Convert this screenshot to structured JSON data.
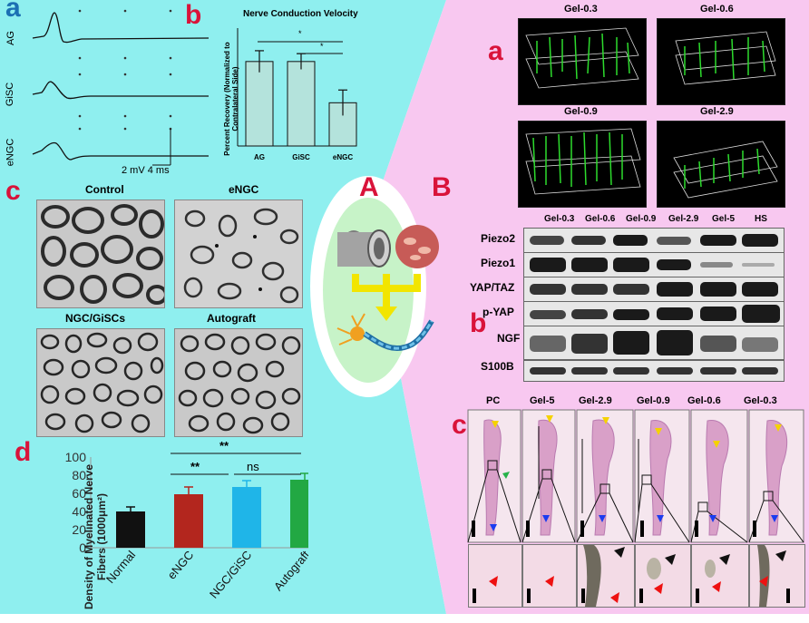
{
  "panel_left": {
    "letter_a": "a",
    "letter_b": "b",
    "letter_c": "c",
    "letter_d": "d",
    "traces": {
      "labels": [
        "AG",
        "GiSC",
        "eNGC"
      ],
      "scale_text": "2 mV 4 ms"
    },
    "conduction_chart": {
      "title": "Nerve Conduction Velocity",
      "ylabel": "Percent Recovery (Normalized to Contralateral Side)",
      "sig_1": "*",
      "sig_2": "*"
    },
    "em_images": {
      "labels": [
        "Control",
        "eNGC",
        "NGC/GiSCs",
        "Autograft"
      ]
    },
    "density_chart": {
      "sig_1": "**",
      "sig_2": "**",
      "sig_3": "ns"
    }
  },
  "center": {
    "letter_A": "A",
    "letter_B": "B"
  },
  "panel_right": {
    "letter_a": "a",
    "letter_b": "b",
    "letter_c": "c",
    "confocal_labels": [
      "Gel-0.3",
      "Gel-0.6",
      "Gel-0.9",
      "Gel-2.9"
    ],
    "blot_columns": [
      "Gel-0.3",
      "Gel-0.6",
      "Gel-0.9",
      "Gel-2.9",
      "Gel-5",
      "HS"
    ],
    "blot_rows": [
      "Piezo2",
      "Piezo1",
      "YAP/TAZ",
      "p-YAP",
      "NGF",
      "S100B"
    ],
    "he_labels": [
      "PC",
      "Gel-5",
      "Gel-2.9",
      "Gel-0.9",
      "Gel-0.6",
      "Gel-0.3"
    ]
  },
  "chart_data": [
    {
      "type": "bar",
      "title": "Nerve Conduction Velocity",
      "categories": [
        "AG",
        "GiSC",
        "eNGC"
      ],
      "values": [
        86,
        86,
        44
      ],
      "errors": [
        11,
        8,
        13
      ],
      "xlabel": "",
      "ylabel": "Percent Recovery (Normalized to Contralateral Side)",
      "ylim": [
        0,
        120
      ],
      "grid": false,
      "color": "#b4e3dc"
    },
    {
      "type": "bar",
      "title": "",
      "categories": [
        "Normal",
        "eNGC",
        "NGC/GiSC",
        "Autograft"
      ],
      "values": [
        40,
        59,
        67,
        75
      ],
      "errors": [
        5,
        8,
        7,
        7
      ],
      "colors": [
        "#111111",
        "#b3261e",
        "#1fb5e8",
        "#22a843"
      ],
      "xlabel": "",
      "ylabel": "Density of Myelinated Nerve Fibers (1000μm²)",
      "ylim": [
        0,
        100
      ],
      "yticks": [
        0,
        20,
        40,
        60,
        80,
        100
      ],
      "grid": false
    }
  ]
}
